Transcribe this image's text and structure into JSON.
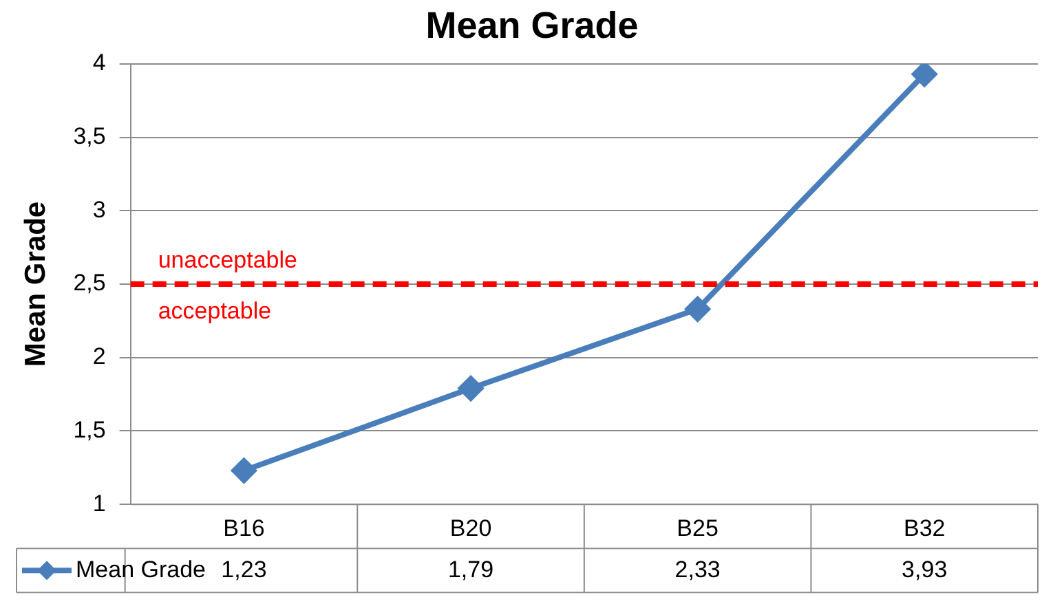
{
  "chart_data": {
    "type": "line",
    "title": "Mean Grade",
    "ylabel": "Mean Grade",
    "categories": [
      "B16",
      "B20",
      "B25",
      "B32"
    ],
    "series": [
      {
        "name": "Mean Grade",
        "color": "#4a7ebb",
        "values": [
          1.23,
          1.79,
          2.33,
          3.93
        ],
        "value_labels": [
          "1,23",
          "1,79",
          "2,33",
          "3,93"
        ]
      }
    ],
    "ylim": [
      1,
      4
    ],
    "yticks": [
      1,
      {
        "value": 1.5,
        "label": "1,5"
      },
      2,
      {
        "value": 2.5,
        "label": "2,5"
      },
      3,
      {
        "value": 3.5,
        "label": "3,5"
      },
      4
    ],
    "ref_lines": [
      {
        "axis": "y",
        "value": 2.5,
        "label": "unacceptable",
        "color": "#ff0000",
        "line_style": "dashed"
      }
    ],
    "annotations": [
      {
        "text": "acceptable",
        "y": 2.5
      }
    ],
    "grid": "y",
    "legend": "bottom",
    "marker": "diamond",
    "line_style": "solid"
  }
}
